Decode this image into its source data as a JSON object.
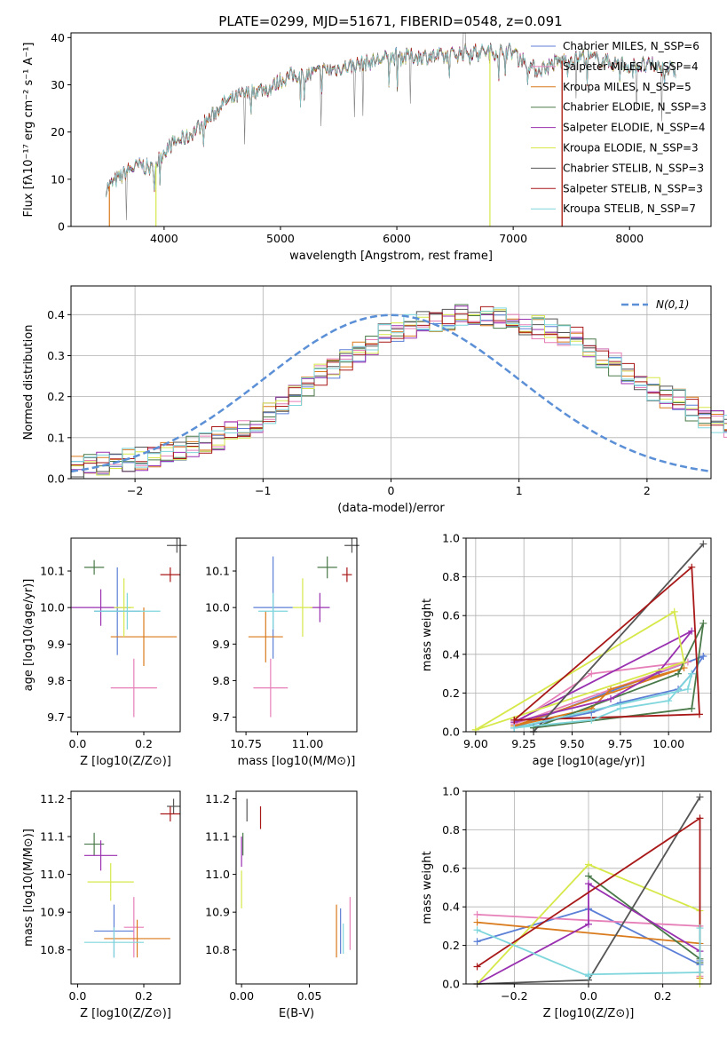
{
  "colors": {
    "Chabrier MILES": "#5b7fd6",
    "Salpeter MILES": "#e67fb8",
    "Kroupa MILES": "#d97a1c",
    "Chabrier ELODIE": "#4a7a4a",
    "Salpeter ELODIE": "#9930b0",
    "Kroupa ELODIE": "#d6e84a",
    "Chabrier STELIB": "#555555",
    "Salpeter STELIB": "#a81818",
    "Kroupa STELIB": "#7ed6dc",
    "data": "#808080",
    "gauss": "#5b8fd6"
  },
  "chart_data": [
    {
      "id": "spectrum",
      "type": "line",
      "title": "PLATE=0299, MJD=51671, FIBERID=0548, z=0.091",
      "xlabel": "wavelength [Angstrom, rest frame]",
      "ylabel": "Flux [fλ10⁻¹⁷ erg cm⁻² s⁻¹ A⁻¹]",
      "xlim": [
        3200,
        8700
      ],
      "ylim": [
        0,
        41
      ],
      "xticks": [
        4000,
        5000,
        6000,
        7000,
        8000
      ],
      "yticks": [
        0,
        10,
        20,
        30,
        40
      ],
      "continuum": [
        [
          3500,
          8
        ],
        [
          3600,
          10
        ],
        [
          3700,
          12
        ],
        [
          3800,
          13
        ],
        [
          3900,
          12
        ],
        [
          4000,
          16
        ],
        [
          4100,
          18
        ],
        [
          4200,
          19
        ],
        [
          4300,
          21
        ],
        [
          4400,
          23
        ],
        [
          4500,
          26
        ],
        [
          4600,
          27
        ],
        [
          4700,
          28
        ],
        [
          4800,
          29
        ],
        [
          4900,
          29
        ],
        [
          5000,
          31
        ],
        [
          5100,
          32
        ],
        [
          5200,
          32
        ],
        [
          5400,
          33
        ],
        [
          5600,
          34
        ],
        [
          5800,
          35
        ],
        [
          6000,
          36
        ],
        [
          6200,
          36
        ],
        [
          6400,
          36
        ],
        [
          6600,
          37
        ],
        [
          6800,
          37
        ],
        [
          7000,
          37
        ],
        [
          7200,
          33
        ],
        [
          7400,
          35
        ],
        [
          7600,
          36
        ],
        [
          7800,
          35
        ],
        [
          8000,
          34
        ],
        [
          8200,
          34
        ],
        [
          8400,
          33
        ]
      ],
      "legend_entries": [
        "Chabrier MILES, N_SSP=6",
        "Salpeter MILES, N_SSP=4",
        "Kroupa MILES, N_SSP=5",
        "Chabrier ELODIE, N_SSP=3",
        "Salpeter ELODIE, N_SSP=4",
        "Kroupa ELODIE, N_SSP=3",
        "Chabrier STELIB, N_SSP=3",
        "Salpeter STELIB, N_SSP=3",
        "Kroupa STELIB, N_SSP=7"
      ],
      "legend_placement": "top-right",
      "grid": false
    },
    {
      "id": "residual-hist",
      "type": "histogram",
      "xlabel": "(data-model)/error",
      "ylabel": "Normed distribution",
      "xlim": [
        -2.5,
        2.5
      ],
      "ylim": [
        0,
        0.47
      ],
      "xticks": [
        -2,
        -1,
        0,
        1,
        2
      ],
      "yticks": [
        0.0,
        0.1,
        0.2,
        0.3,
        0.4
      ],
      "bin_width": 0.1,
      "bin_start": -2.5,
      "envelope": [
        0.025,
        0.03,
        0.035,
        0.04,
        0.045,
        0.05,
        0.055,
        0.06,
        0.07,
        0.08,
        0.09,
        0.1,
        0.11,
        0.12,
        0.14,
        0.16,
        0.18,
        0.2,
        0.22,
        0.25,
        0.27,
        0.29,
        0.31,
        0.33,
        0.35,
        0.36,
        0.37,
        0.38,
        0.385,
        0.39,
        0.4,
        0.4,
        0.4,
        0.395,
        0.39,
        0.38,
        0.37,
        0.36,
        0.35,
        0.34,
        0.32,
        0.3,
        0.28,
        0.26,
        0.24,
        0.22,
        0.2,
        0.19,
        0.17,
        0.15,
        0.14,
        0.13,
        0.12,
        0.1,
        0.09,
        0.08,
        0.07,
        0.06,
        0.055,
        0.05,
        0.045,
        0.04,
        0.035,
        0.03,
        0.025
      ],
      "legend": "N(0,1)",
      "legend_placement": "top-right",
      "grid": true
    },
    {
      "id": "age-vs-z",
      "type": "errorbar",
      "xlabel": "Z [log10(Z/Z⊙)]",
      "ylabel": "age  [log10(age/yr)]",
      "xlim": [
        -0.02,
        0.31
      ],
      "ylim": [
        9.66,
        10.19
      ],
      "xticks": [
        0.0,
        0.2
      ],
      "yticks": [
        9.7,
        9.8,
        9.9,
        10.0,
        10.1
      ],
      "points": [
        {
          "model": "Chabrier MILES",
          "x": 0.12,
          "y": 9.99,
          "xerr": 0.07,
          "yerr": 0.12
        },
        {
          "model": "Salpeter MILES",
          "x": 0.17,
          "y": 9.78,
          "xerr": 0.07,
          "yerr": 0.08
        },
        {
          "model": "Kroupa MILES",
          "x": 0.2,
          "y": 9.92,
          "xerr": 0.1,
          "yerr": 0.08
        },
        {
          "model": "Chabrier ELODIE",
          "x": 0.05,
          "y": 10.11,
          "xerr": 0.03,
          "yerr": 0.02
        },
        {
          "model": "Salpeter ELODIE",
          "x": 0.07,
          "y": 10.0,
          "xerr": 0.09,
          "yerr": 0.05
        },
        {
          "model": "Kroupa ELODIE",
          "x": 0.14,
          "y": 10.0,
          "xerr": 0.03,
          "yerr": 0.08
        },
        {
          "model": "Chabrier STELIB",
          "x": 0.3,
          "y": 10.17,
          "xerr": 0.03,
          "yerr": 0.02
        },
        {
          "model": "Salpeter STELIB",
          "x": 0.28,
          "y": 10.09,
          "xerr": 0.03,
          "yerr": 0.02
        },
        {
          "model": "Kroupa STELIB",
          "x": 0.15,
          "y": 9.99,
          "xerr": 0.1,
          "yerr": 0.05
        }
      ]
    },
    {
      "id": "age-vs-mass",
      "type": "errorbar",
      "xlabel": "mass [log10(M/M⊙)]",
      "ylabel": "",
      "xlim": [
        10.71,
        11.2
      ],
      "ylim": [
        9.66,
        10.19
      ],
      "xticks": [
        10.75,
        11.0
      ],
      "yticks": [
        9.7,
        9.8,
        9.9,
        10.0,
        10.1
      ],
      "points": [
        {
          "model": "Chabrier MILES",
          "x": 10.86,
          "y": 10.0,
          "xerr": 0.08,
          "yerr": 0.14
        },
        {
          "model": "Salpeter MILES",
          "x": 10.85,
          "y": 9.78,
          "xerr": 0.07,
          "yerr": 0.08
        },
        {
          "model": "Kroupa MILES",
          "x": 10.83,
          "y": 9.92,
          "xerr": 0.07,
          "yerr": 0.07
        },
        {
          "model": "Chabrier ELODIE",
          "x": 11.08,
          "y": 10.11,
          "xerr": 0.04,
          "yerr": 0.03
        },
        {
          "model": "Salpeter ELODIE",
          "x": 11.05,
          "y": 10.0,
          "xerr": 0.04,
          "yerr": 0.04
        },
        {
          "model": "Kroupa ELODIE",
          "x": 10.98,
          "y": 10.0,
          "xerr": 0.04,
          "yerr": 0.08
        },
        {
          "model": "Chabrier STELIB",
          "x": 11.18,
          "y": 10.17,
          "xerr": 0.03,
          "yerr": 0.02
        },
        {
          "model": "Salpeter STELIB",
          "x": 11.16,
          "y": 10.09,
          "xerr": 0.02,
          "yerr": 0.02
        },
        {
          "model": "Kroupa STELIB",
          "x": 10.86,
          "y": 9.99,
          "xerr": 0.06,
          "yerr": 0.05
        }
      ]
    },
    {
      "id": "weight-vs-age",
      "type": "line",
      "xlabel": "age  [log10(age/yr)]",
      "ylabel": "mass weight",
      "xlim": [
        8.95,
        10.22
      ],
      "ylim": [
        0,
        1
      ],
      "xticks": [
        9.0,
        9.25,
        9.5,
        9.75,
        10.0
      ],
      "yticks": [
        0.0,
        0.2,
        0.4,
        0.6,
        0.8,
        1.0
      ],
      "grid": true,
      "series": [
        {
          "model": "Chabrier MILES",
          "points": [
            [
              9.2,
              0.02
            ],
            [
              9.6,
              0.1
            ],
            [
              9.75,
              0.15
            ],
            [
              10.05,
              0.22
            ],
            [
              10.12,
              0.3
            ],
            [
              10.18,
              0.39
            ],
            [
              9.2,
              0.02
            ]
          ]
        },
        {
          "model": "Salpeter MILES",
          "points": [
            [
              9.2,
              0.04
            ],
            [
              9.6,
              0.3
            ],
            [
              10.1,
              0.36
            ],
            [
              9.2,
              0.04
            ]
          ]
        },
        {
          "model": "Kroupa MILES",
          "points": [
            [
              9.2,
              0.03
            ],
            [
              9.6,
              0.12
            ],
            [
              9.7,
              0.22
            ],
            [
              10.08,
              0.33
            ],
            [
              9.2,
              0.03
            ]
          ]
        },
        {
          "model": "Chabrier ELODIE",
          "points": [
            [
              9.3,
              0.02
            ],
            [
              10.12,
              0.12
            ],
            [
              10.18,
              0.56
            ],
            [
              10.05,
              0.3
            ],
            [
              9.3,
              0.02
            ]
          ]
        },
        {
          "model": "Salpeter ELODIE",
          "points": [
            [
              9.2,
              0.05
            ],
            [
              9.7,
              0.17
            ],
            [
              9.95,
              0.31
            ],
            [
              10.12,
              0.52
            ],
            [
              9.2,
              0.05
            ]
          ]
        },
        {
          "model": "Kroupa ELODIE",
          "points": [
            [
              9.0,
              0.01
            ],
            [
              10.08,
              0.36
            ],
            [
              10.03,
              0.62
            ],
            [
              9.0,
              0.01
            ]
          ]
        },
        {
          "model": "Chabrier STELIB",
          "points": [
            [
              9.3,
              0.0
            ],
            [
              10.18,
              0.97
            ],
            [
              9.3,
              0.0
            ]
          ]
        },
        {
          "model": "Salpeter STELIB",
          "points": [
            [
              9.2,
              0.06
            ],
            [
              10.12,
              0.85
            ],
            [
              10.16,
              0.09
            ],
            [
              9.2,
              0.06
            ]
          ]
        },
        {
          "model": "Kroupa STELIB",
          "points": [
            [
              9.2,
              0.02
            ],
            [
              9.6,
              0.06
            ],
            [
              9.75,
              0.12
            ],
            [
              10.0,
              0.16
            ],
            [
              10.12,
              0.3
            ],
            [
              10.1,
              0.22
            ],
            [
              9.2,
              0.02
            ]
          ]
        }
      ]
    },
    {
      "id": "mass-vs-z",
      "type": "errorbar",
      "xlabel": "Z [log10(Z/Z⊙)]",
      "ylabel": "mass [log10(M/M⊙)]",
      "xlim": [
        -0.02,
        0.31
      ],
      "ylim": [
        10.71,
        11.22
      ],
      "xticks": [
        0.0,
        0.2
      ],
      "yticks": [
        10.8,
        10.9,
        11.0,
        11.1,
        11.2
      ],
      "points": [
        {
          "model": "Chabrier MILES",
          "x": 0.11,
          "y": 10.85,
          "xerr": 0.06,
          "yerr": 0.07
        },
        {
          "model": "Salpeter MILES",
          "x": 0.17,
          "y": 10.86,
          "xerr": 0.03,
          "yerr": 0.08
        },
        {
          "model": "Kroupa MILES",
          "x": 0.18,
          "y": 10.83,
          "xerr": 0.1,
          "yerr": 0.05
        },
        {
          "model": "Chabrier ELODIE",
          "x": 0.05,
          "y": 11.08,
          "xerr": 0.03,
          "yerr": 0.03
        },
        {
          "model": "Salpeter ELODIE",
          "x": 0.07,
          "y": 11.05,
          "xerr": 0.05,
          "yerr": 0.04
        },
        {
          "model": "Kroupa ELODIE",
          "x": 0.1,
          "y": 10.98,
          "xerr": 0.07,
          "yerr": 0.05
        },
        {
          "model": "Chabrier STELIB",
          "x": 0.29,
          "y": 11.18,
          "xerr": 0.02,
          "yerr": 0.02
        },
        {
          "model": "Salpeter STELIB",
          "x": 0.28,
          "y": 11.16,
          "xerr": 0.03,
          "yerr": 0.02
        },
        {
          "model": "Kroupa STELIB",
          "x": 0.11,
          "y": 10.82,
          "xerr": 0.09,
          "yerr": 0.04
        }
      ]
    },
    {
      "id": "mass-vs-ebv",
      "type": "errorbar",
      "xlabel": "E(B-V)",
      "ylabel": "",
      "xlim": [
        -0.004,
        0.085
      ],
      "ylim": [
        10.71,
        11.22
      ],
      "xticks": [
        0.0,
        0.05
      ],
      "yticks": [
        10.8,
        10.9,
        11.0,
        11.1,
        11.2
      ],
      "points": [
        {
          "model": "Chabrier MILES",
          "x": 0.073,
          "y": 10.85,
          "xerr": 0.0,
          "yerr": 0.06
        },
        {
          "model": "Salpeter MILES",
          "x": 0.08,
          "y": 10.87,
          "xerr": 0.0,
          "yerr": 0.07
        },
        {
          "model": "Kroupa MILES",
          "x": 0.07,
          "y": 10.85,
          "xerr": 0.0,
          "yerr": 0.07
        },
        {
          "model": "Chabrier ELODIE",
          "x": 0.001,
          "y": 11.08,
          "xerr": 0.0,
          "yerr": 0.03
        },
        {
          "model": "Salpeter ELODIE",
          "x": 0.0,
          "y": 11.06,
          "xerr": 0.0,
          "yerr": 0.04
        },
        {
          "model": "Kroupa ELODIE",
          "x": 0.0,
          "y": 10.96,
          "xerr": 0.0,
          "yerr": 0.05
        },
        {
          "model": "Chabrier STELIB",
          "x": 0.004,
          "y": 11.17,
          "xerr": 0.0,
          "yerr": 0.03
        },
        {
          "model": "Salpeter STELIB",
          "x": 0.014,
          "y": 11.15,
          "xerr": 0.0,
          "yerr": 0.03
        },
        {
          "model": "Kroupa STELIB",
          "x": 0.075,
          "y": 10.83,
          "xerr": 0.0,
          "yerr": 0.04
        }
      ]
    },
    {
      "id": "weight-vs-z",
      "type": "line",
      "xlabel": "Z [log10(Z/Z⊙)]",
      "ylabel": "mass weight",
      "xlim": [
        -0.33,
        0.33
      ],
      "ylim": [
        0,
        1
      ],
      "xticks": [
        -0.2,
        0.0,
        0.2
      ],
      "yticks": [
        0.0,
        0.2,
        0.4,
        0.6,
        0.8,
        1.0
      ],
      "grid": true,
      "series": [
        {
          "model": "Chabrier MILES",
          "points": [
            [
              -0.3,
              0.22
            ],
            [
              0.0,
              0.39
            ],
            [
              0.3,
              0.1
            ],
            [
              0.3,
              0.12
            ]
          ]
        },
        {
          "model": "Salpeter MILES",
          "points": [
            [
              -0.3,
              0.36
            ],
            [
              0.3,
              0.3
            ],
            [
              0.3,
              0.04
            ]
          ]
        },
        {
          "model": "Kroupa MILES",
          "points": [
            [
              -0.3,
              0.32
            ],
            [
              0.3,
              0.21
            ],
            [
              0.3,
              0.03
            ]
          ]
        },
        {
          "model": "Chabrier ELODIE",
          "points": [
            [
              0.0,
              0.56
            ],
            [
              0.3,
              0.13
            ],
            [
              0.3,
              0.11
            ]
          ]
        },
        {
          "model": "Salpeter ELODIE",
          "points": [
            [
              -0.3,
              0.0
            ],
            [
              0.0,
              0.31
            ],
            [
              0.0,
              0.52
            ],
            [
              0.3,
              0.17
            ]
          ]
        },
        {
          "model": "Kroupa ELODIE",
          "points": [
            [
              -0.3,
              0.0
            ],
            [
              0.0,
              0.62
            ],
            [
              0.3,
              0.38
            ],
            [
              0.3,
              0.0
            ]
          ]
        },
        {
          "model": "Chabrier STELIB",
          "points": [
            [
              -0.3,
              0.0
            ],
            [
              0.0,
              0.02
            ],
            [
              0.3,
              0.97
            ]
          ]
        },
        {
          "model": "Salpeter STELIB",
          "points": [
            [
              -0.3,
              0.09
            ],
            [
              0.3,
              0.86
            ],
            [
              0.3,
              0.06
            ]
          ]
        },
        {
          "model": "Kroupa STELIB",
          "points": [
            [
              -0.3,
              0.28
            ],
            [
              0.0,
              0.04
            ],
            [
              0.0,
              0.05
            ],
            [
              0.3,
              0.06
            ],
            [
              0.3,
              0.29
            ]
          ]
        }
      ]
    }
  ]
}
